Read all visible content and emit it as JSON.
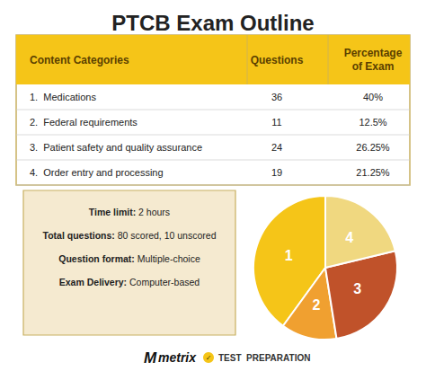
{
  "chart_data": {
    "type": "pie",
    "title": "PTCB Exam Outline",
    "categories": [
      "1",
      "2",
      "3",
      "4"
    ],
    "values": [
      40,
      12.5,
      26.25,
      21.25
    ],
    "colors": [
      "#F5C518",
      "#F0A030",
      "#C0522A",
      "#F0D880"
    ],
    "table": {
      "columns": [
        "Content Categories",
        "Questions",
        "Percentage\nof Exam"
      ],
      "rows": [
        [
          "1.  Medications",
          "36",
          "40%"
        ],
        [
          "2.  Federal requirements",
          "11",
          "12.5%"
        ],
        [
          "3.  Patient safety and quality assurance",
          "24",
          "26.25%"
        ],
        [
          "4.  Order entry and processing",
          "19",
          "21.25%"
        ]
      ]
    },
    "annotations": [
      [
        "Time limit:",
        " 2 hours"
      ],
      [
        "Total questions:",
        " 80 scored, 10 unscored"
      ],
      [
        "Question format:",
        " Multiple-choice"
      ],
      [
        "Exam Delivery:",
        " Computer-based"
      ]
    ],
    "footer": [
      "M",
      "metrix",
      "✓",
      "TEST  PREPARATION"
    ]
  }
}
